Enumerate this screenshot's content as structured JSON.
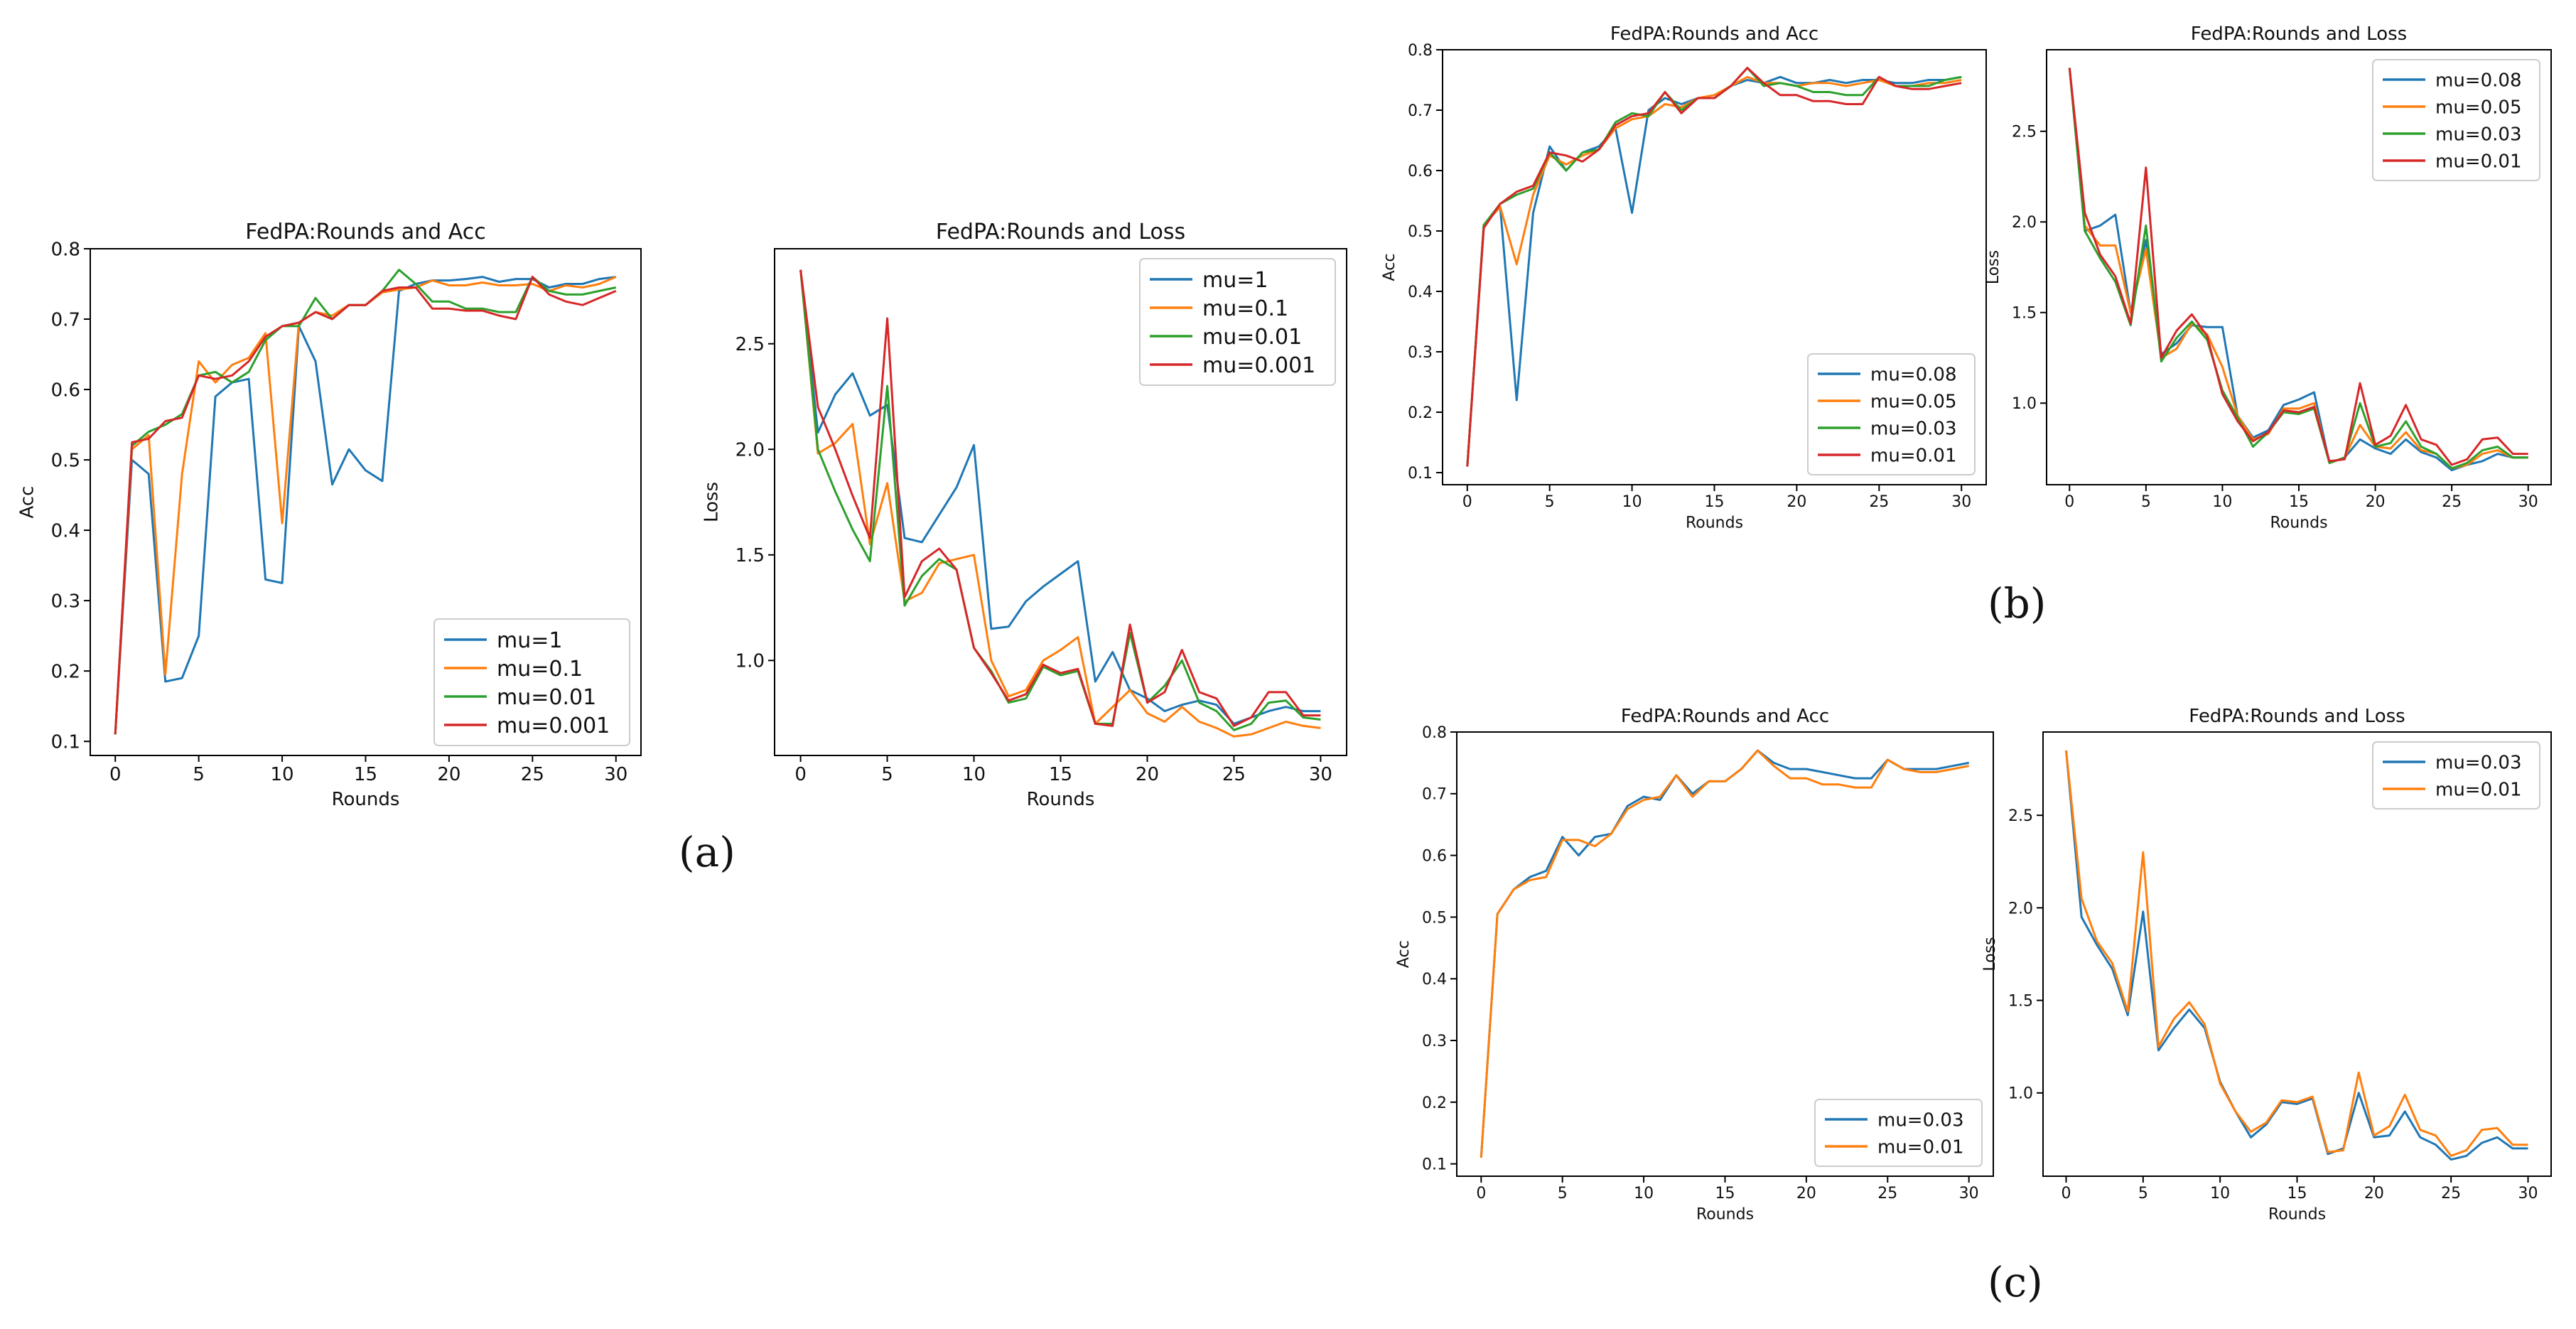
{
  "panel_labels": {
    "a": "(a)",
    "b": "(b)",
    "c": "(c)"
  },
  "colors": {
    "c0": "#1f77b4",
    "c1": "#ff7f0e",
    "c2": "#2ca02c",
    "c3": "#d62728"
  },
  "chart_data": [
    {
      "id": "a-acc",
      "type": "line",
      "title": "FedPA:Rounds and Acc",
      "xlabel": "Rounds",
      "ylabel": "Acc",
      "grid": false,
      "xlim": [
        -1.5,
        31.5
      ],
      "ylim": [
        0.08,
        0.8
      ],
      "xticks": [
        0,
        5,
        10,
        15,
        20,
        25,
        30
      ],
      "yticks": [
        0.1,
        0.2,
        0.3,
        0.4,
        0.5,
        0.6,
        0.7,
        0.8
      ],
      "ytick_labels": [
        "0.1",
        "0.2",
        "0.3",
        "0.4",
        "0.5",
        "0.6",
        "0.7",
        "0.8"
      ],
      "legend": "lower-right",
      "legend_size": "large",
      "series": [
        {
          "name": "mu=1",
          "values": [
            0.11,
            0.5,
            0.48,
            0.185,
            0.19,
            0.25,
            0.59,
            0.61,
            0.615,
            0.33,
            0.325,
            0.69,
            0.64,
            0.465,
            0.515,
            0.485,
            0.47,
            0.74,
            0.75,
            0.755,
            0.755,
            0.757,
            0.76,
            0.753,
            0.757,
            0.757,
            0.745,
            0.75,
            0.75,
            0.757,
            0.76
          ]
        },
        {
          "name": "mu=0.1",
          "values": [
            0.11,
            0.515,
            0.535,
            0.195,
            0.48,
            0.64,
            0.61,
            0.635,
            0.645,
            0.68,
            0.41,
            0.695,
            0.71,
            0.705,
            0.72,
            0.72,
            0.738,
            0.742,
            0.745,
            0.755,
            0.748,
            0.748,
            0.752,
            0.748,
            0.748,
            0.75,
            0.74,
            0.748,
            0.745,
            0.75,
            0.76
          ]
        },
        {
          "name": "mu=0.01",
          "values": [
            0.11,
            0.52,
            0.54,
            0.55,
            0.565,
            0.62,
            0.625,
            0.61,
            0.625,
            0.67,
            0.69,
            0.69,
            0.73,
            0.7,
            0.72,
            0.72,
            0.74,
            0.77,
            0.75,
            0.725,
            0.725,
            0.715,
            0.715,
            0.71,
            0.71,
            0.76,
            0.74,
            0.735,
            0.735,
            0.74,
            0.745
          ]
        },
        {
          "name": "mu=0.001",
          "values": [
            0.11,
            0.525,
            0.53,
            0.555,
            0.56,
            0.62,
            0.615,
            0.62,
            0.64,
            0.675,
            0.69,
            0.695,
            0.71,
            0.7,
            0.72,
            0.72,
            0.74,
            0.745,
            0.745,
            0.715,
            0.715,
            0.712,
            0.712,
            0.705,
            0.7,
            0.76,
            0.735,
            0.725,
            0.72,
            0.73,
            0.74
          ]
        }
      ]
    },
    {
      "id": "a-loss",
      "type": "line",
      "title": "FedPA:Rounds and Loss",
      "xlabel": "Rounds",
      "ylabel": "Loss",
      "grid": false,
      "xlim": [
        -1.5,
        31.5
      ],
      "ylim": [
        0.55,
        2.95
      ],
      "xticks": [
        0,
        5,
        10,
        15,
        20,
        25,
        30
      ],
      "yticks": [
        1.0,
        1.5,
        2.0,
        2.5
      ],
      "ytick_labels": [
        "1.0",
        "1.5",
        "2.0",
        "2.5"
      ],
      "legend": "top-right",
      "legend_size": "large",
      "series": [
        {
          "name": "mu=1",
          "values": [
            2.85,
            2.08,
            2.26,
            2.36,
            2.16,
            2.21,
            1.58,
            1.56,
            1.69,
            1.82,
            2.02,
            1.15,
            1.16,
            1.28,
            1.35,
            1.41,
            1.47,
            0.9,
            1.04,
            0.86,
            0.82,
            0.76,
            0.79,
            0.81,
            0.79,
            0.7,
            0.73,
            0.76,
            0.78,
            0.76,
            0.76
          ]
        },
        {
          "name": "mu=0.1",
          "values": [
            2.85,
            1.98,
            2.03,
            2.12,
            1.55,
            1.84,
            1.28,
            1.32,
            1.46,
            1.48,
            1.5,
            1.0,
            0.83,
            0.86,
            1.0,
            1.05,
            1.11,
            0.7,
            0.78,
            0.86,
            0.75,
            0.71,
            0.78,
            0.71,
            0.68,
            0.64,
            0.65,
            0.68,
            0.71,
            0.69,
            0.68
          ]
        },
        {
          "name": "mu=0.01",
          "values": [
            2.85,
            2.0,
            1.8,
            1.62,
            1.47,
            2.3,
            1.26,
            1.4,
            1.48,
            1.43,
            1.06,
            0.95,
            0.8,
            0.82,
            0.97,
            0.93,
            0.95,
            0.7,
            0.7,
            1.13,
            0.8,
            0.88,
            1.0,
            0.8,
            0.76,
            0.67,
            0.7,
            0.8,
            0.81,
            0.73,
            0.72
          ]
        },
        {
          "name": "mu=0.001",
          "values": [
            2.85,
            2.2,
            2.0,
            1.78,
            1.58,
            2.62,
            1.3,
            1.47,
            1.53,
            1.43,
            1.06,
            0.94,
            0.81,
            0.84,
            0.98,
            0.94,
            0.96,
            0.7,
            0.69,
            1.17,
            0.8,
            0.85,
            1.05,
            0.85,
            0.82,
            0.69,
            0.73,
            0.85,
            0.85,
            0.74,
            0.74
          ]
        }
      ]
    },
    {
      "id": "b-acc",
      "type": "line",
      "title": "FedPA:Rounds and Acc",
      "xlabel": "Rounds",
      "ylabel": "Acc",
      "grid": false,
      "xlim": [
        -1.5,
        31.5
      ],
      "ylim": [
        0.08,
        0.8
      ],
      "xticks": [
        0,
        5,
        10,
        15,
        20,
        25,
        30
      ],
      "yticks": [
        0.1,
        0.2,
        0.3,
        0.4,
        0.5,
        0.6,
        0.7,
        0.8
      ],
      "ytick_labels": [
        "0.1",
        "0.2",
        "0.3",
        "0.4",
        "0.5",
        "0.6",
        "0.7",
        "0.8"
      ],
      "legend": "lower-right",
      "legend_size": "medium",
      "series": [
        {
          "name": "mu=0.08",
          "values": [
            0.11,
            0.51,
            0.54,
            0.22,
            0.53,
            0.64,
            0.6,
            0.63,
            0.64,
            0.67,
            0.53,
            0.7,
            0.72,
            0.71,
            0.72,
            0.72,
            0.74,
            0.75,
            0.745,
            0.755,
            0.745,
            0.745,
            0.75,
            0.745,
            0.75,
            0.75,
            0.745,
            0.745,
            0.75,
            0.75,
            0.755
          ]
        },
        {
          "name": "mu=0.05",
          "values": [
            0.11,
            0.51,
            0.54,
            0.445,
            0.56,
            0.625,
            0.61,
            0.625,
            0.635,
            0.67,
            0.685,
            0.69,
            0.71,
            0.705,
            0.72,
            0.725,
            0.74,
            0.755,
            0.745,
            0.745,
            0.74,
            0.745,
            0.745,
            0.74,
            0.745,
            0.75,
            0.74,
            0.74,
            0.745,
            0.745,
            0.75
          ]
        },
        {
          "name": "mu=0.03",
          "values": [
            0.11,
            0.51,
            0.545,
            0.56,
            0.57,
            0.63,
            0.6,
            0.63,
            0.635,
            0.68,
            0.695,
            0.69,
            0.73,
            0.7,
            0.72,
            0.72,
            0.74,
            0.77,
            0.74,
            0.745,
            0.74,
            0.73,
            0.73,
            0.725,
            0.725,
            0.755,
            0.74,
            0.74,
            0.74,
            0.75,
            0.755
          ]
        },
        {
          "name": "mu=0.01",
          "values": [
            0.11,
            0.505,
            0.545,
            0.565,
            0.575,
            0.63,
            0.625,
            0.615,
            0.635,
            0.675,
            0.69,
            0.695,
            0.73,
            0.695,
            0.72,
            0.72,
            0.74,
            0.77,
            0.745,
            0.725,
            0.725,
            0.715,
            0.715,
            0.71,
            0.71,
            0.755,
            0.74,
            0.735,
            0.735,
            0.74,
            0.745
          ]
        }
      ]
    },
    {
      "id": "b-loss",
      "type": "line",
      "title": "FedPA:Rounds and Loss",
      "xlabel": "Rounds",
      "ylabel": "Loss",
      "grid": false,
      "xlim": [
        -1.5,
        31.5
      ],
      "ylim": [
        0.55,
        2.95
      ],
      "xticks": [
        0,
        5,
        10,
        15,
        20,
        25,
        30
      ],
      "yticks": [
        1.0,
        1.5,
        2.0,
        2.5
      ],
      "ytick_labels": [
        "1.0",
        "1.5",
        "2.0",
        "2.5"
      ],
      "legend": "top-right",
      "legend_size": "medium",
      "series": [
        {
          "name": "mu=0.08",
          "values": [
            2.85,
            1.95,
            1.98,
            2.04,
            1.5,
            1.9,
            1.27,
            1.33,
            1.43,
            1.42,
            1.42,
            0.93,
            0.81,
            0.85,
            0.99,
            1.02,
            1.06,
            0.67,
            0.7,
            0.8,
            0.75,
            0.72,
            0.8,
            0.73,
            0.7,
            0.63,
            0.66,
            0.68,
            0.72,
            0.7,
            0.7
          ]
        },
        {
          "name": "mu=0.05",
          "values": [
            2.85,
            1.98,
            1.87,
            1.87,
            1.5,
            1.85,
            1.25,
            1.3,
            1.44,
            1.38,
            1.2,
            0.93,
            0.8,
            0.83,
            0.97,
            0.97,
            1.0,
            0.67,
            0.7,
            0.88,
            0.76,
            0.75,
            0.84,
            0.74,
            0.72,
            0.64,
            0.66,
            0.72,
            0.74,
            0.7,
            0.7
          ]
        },
        {
          "name": "mu=0.03",
          "values": [
            2.85,
            1.95,
            1.8,
            1.67,
            1.43,
            1.98,
            1.23,
            1.36,
            1.45,
            1.35,
            1.07,
            0.92,
            0.76,
            0.84,
            0.95,
            0.94,
            0.97,
            0.67,
            0.7,
            1.0,
            0.76,
            0.78,
            0.9,
            0.76,
            0.72,
            0.64,
            0.67,
            0.74,
            0.76,
            0.7,
            0.7
          ]
        },
        {
          "name": "mu=0.01",
          "values": [
            2.85,
            2.05,
            1.82,
            1.7,
            1.44,
            2.3,
            1.25,
            1.4,
            1.49,
            1.37,
            1.05,
            0.9,
            0.79,
            0.84,
            0.96,
            0.95,
            0.98,
            0.68,
            0.69,
            1.11,
            0.77,
            0.82,
            0.99,
            0.8,
            0.77,
            0.66,
            0.69,
            0.8,
            0.81,
            0.72,
            0.72
          ]
        }
      ]
    },
    {
      "id": "c-acc",
      "type": "line",
      "title": "FedPA:Rounds and Acc",
      "xlabel": "Rounds",
      "ylabel": "Acc",
      "grid": false,
      "xlim": [
        -1.5,
        31.5
      ],
      "ylim": [
        0.08,
        0.8
      ],
      "xticks": [
        0,
        5,
        10,
        15,
        20,
        25,
        30
      ],
      "yticks": [
        0.1,
        0.2,
        0.3,
        0.4,
        0.5,
        0.6,
        0.7,
        0.8
      ],
      "ytick_labels": [
        "0.1",
        "0.2",
        "0.3",
        "0.4",
        "0.5",
        "0.6",
        "0.7",
        "0.8"
      ],
      "legend": "lower-right",
      "legend_size": "medium",
      "series": [
        {
          "name": "mu=0.03",
          "values": [
            0.11,
            0.505,
            0.545,
            0.565,
            0.575,
            0.63,
            0.6,
            0.63,
            0.635,
            0.68,
            0.695,
            0.69,
            0.73,
            0.7,
            0.72,
            0.72,
            0.74,
            0.77,
            0.75,
            0.74,
            0.74,
            0.735,
            0.73,
            0.725,
            0.725,
            0.755,
            0.74,
            0.74,
            0.74,
            0.745,
            0.75
          ]
        },
        {
          "name": "mu=0.01",
          "values": [
            0.11,
            0.505,
            0.545,
            0.56,
            0.565,
            0.625,
            0.625,
            0.615,
            0.635,
            0.675,
            0.69,
            0.695,
            0.73,
            0.695,
            0.72,
            0.72,
            0.74,
            0.77,
            0.745,
            0.725,
            0.725,
            0.715,
            0.715,
            0.71,
            0.71,
            0.755,
            0.74,
            0.735,
            0.735,
            0.74,
            0.745
          ]
        }
      ]
    },
    {
      "id": "c-loss",
      "type": "line",
      "title": "FedPA:Rounds and Loss",
      "xlabel": "Rounds",
      "ylabel": "Loss",
      "grid": false,
      "xlim": [
        -1.5,
        31.5
      ],
      "ylim": [
        0.55,
        2.95
      ],
      "xticks": [
        0,
        5,
        10,
        15,
        20,
        25,
        30
      ],
      "yticks": [
        1.0,
        1.5,
        2.0,
        2.5
      ],
      "ytick_labels": [
        "1.0",
        "1.5",
        "2.0",
        "2.5"
      ],
      "legend": "top-right",
      "legend_size": "medium",
      "series": [
        {
          "name": "mu=0.03",
          "values": [
            2.85,
            1.95,
            1.8,
            1.67,
            1.42,
            1.98,
            1.23,
            1.35,
            1.45,
            1.35,
            1.06,
            0.9,
            0.76,
            0.83,
            0.95,
            0.94,
            0.97,
            0.67,
            0.7,
            1.0,
            0.76,
            0.77,
            0.9,
            0.76,
            0.72,
            0.64,
            0.66,
            0.73,
            0.76,
            0.7,
            0.7
          ]
        },
        {
          "name": "mu=0.01",
          "values": [
            2.85,
            2.05,
            1.82,
            1.7,
            1.44,
            2.3,
            1.25,
            1.4,
            1.49,
            1.37,
            1.05,
            0.9,
            0.79,
            0.84,
            0.96,
            0.95,
            0.98,
            0.68,
            0.69,
            1.11,
            0.77,
            0.82,
            0.99,
            0.8,
            0.77,
            0.66,
            0.69,
            0.8,
            0.81,
            0.72,
            0.72
          ]
        }
      ]
    }
  ]
}
